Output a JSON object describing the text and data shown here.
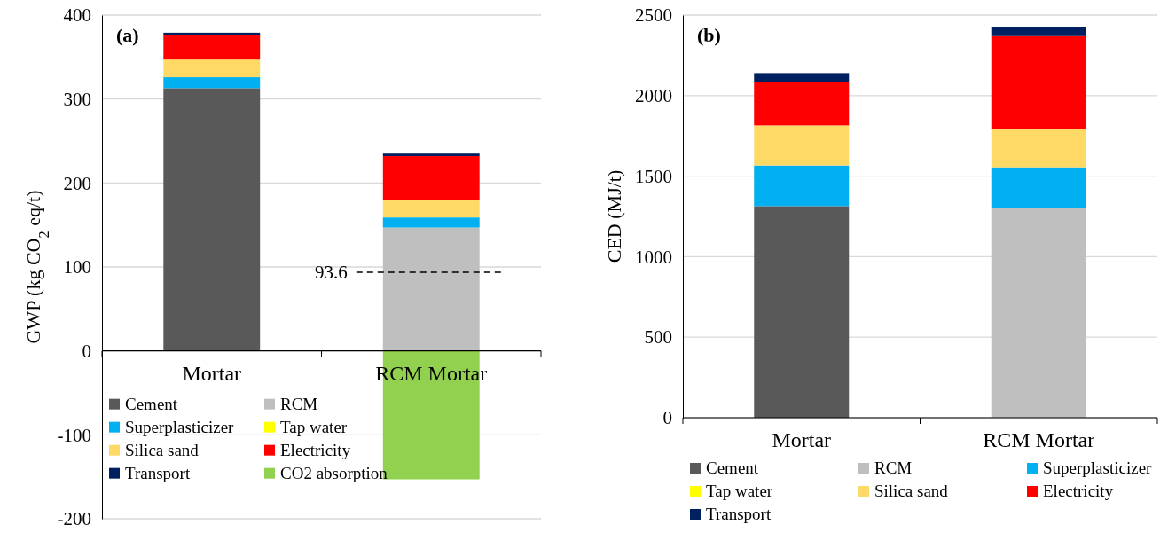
{
  "chart_data": [
    {
      "type": "bar",
      "title": "(a)",
      "ylabel": "GWP (kg CO$_{2}$ eq/t)",
      "categories": [
        "Mortar",
        "RCM Mortar"
      ],
      "stacked": true,
      "ylim": [
        -200,
        400
      ],
      "yticks": [
        -200,
        -100,
        0,
        100,
        200,
        300,
        400
      ],
      "grid": "y",
      "legend": "bottom left",
      "series": [
        {
          "name": "Cement",
          "color": "#595959",
          "values": [
            313,
            null
          ]
        },
        {
          "name": "RCM",
          "color": "#bfbfbf",
          "values": [
            null,
            147
          ]
        },
        {
          "name": "Superplasticizer",
          "color": "#00b0f0",
          "values": [
            13,
            12
          ]
        },
        {
          "name": "Tap water",
          "color": "#ffff00",
          "values": [
            0,
            0
          ]
        },
        {
          "name": "Silica sand",
          "color": "#ffd966",
          "values": [
            21,
            21
          ]
        },
        {
          "name": "Electricity",
          "color": "#ff0000",
          "values": [
            29,
            52
          ]
        },
        {
          "name": "Transport",
          "color": "#002060",
          "values": [
            3,
            3
          ]
        },
        {
          "name": "CO2 absorption",
          "color": "#92d050",
          "values": [
            null,
            -153
          ]
        }
      ],
      "ref_lines": [
        {
          "axis": "y",
          "value": 93.6,
          "label": "93.6",
          "line_style": "dashed",
          "color": "#000000"
        }
      ]
    },
    {
      "type": "bar",
      "title": "(b)",
      "ylabel": "CED (MJ/t)",
      "categories": [
        "Mortar",
        "RCM Mortar"
      ],
      "stacked": true,
      "ylim": [
        0,
        2500
      ],
      "yticks": [
        0,
        500,
        1000,
        1500,
        2000,
        2500
      ],
      "grid": "y",
      "legend": "bottom",
      "series": [
        {
          "name": "Cement",
          "color": "#595959",
          "values": [
            1314,
            null
          ]
        },
        {
          "name": "RCM",
          "color": "#bfbfbf",
          "values": [
            null,
            1303
          ]
        },
        {
          "name": "Superplasticizer",
          "color": "#00b0f0",
          "values": [
            252,
            252
          ]
        },
        {
          "name": "Tap water",
          "color": "#ffff00",
          "values": [
            0,
            0
          ]
        },
        {
          "name": "Silica sand",
          "color": "#ffd966",
          "values": [
            249,
            240
          ]
        },
        {
          "name": "Electricity",
          "color": "#ff0000",
          "values": [
            268,
            574
          ]
        },
        {
          "name": "Transport",
          "color": "#002060",
          "values": [
            57,
            58
          ]
        }
      ]
    }
  ]
}
